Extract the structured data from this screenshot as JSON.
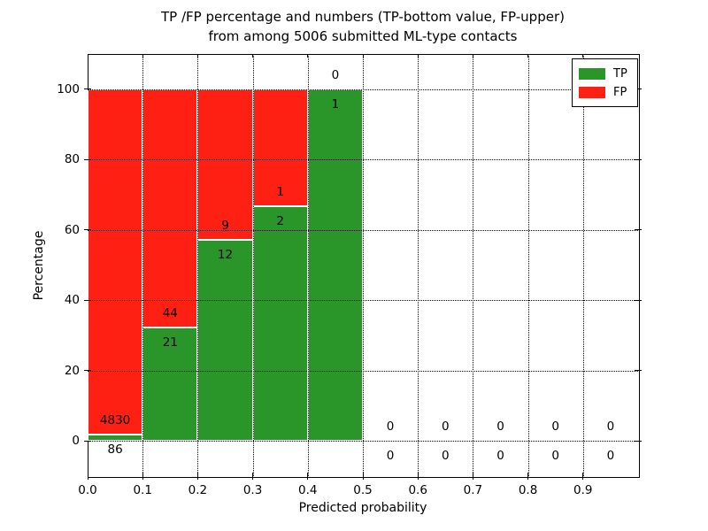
{
  "chart_data": {
    "type": "bar",
    "stacked": true,
    "title_lines": [
      "TP /FP percentage and numbers (TP-bottom value, FP-upper)",
      "from among 5006 submitted ML-type contacts"
    ],
    "xlabel": "Predicted probability",
    "ylabel": "Percentage",
    "xlim": [
      0.0,
      1.0
    ],
    "ylim": [
      -10,
      110
    ],
    "xticks": [
      0.0,
      0.1,
      0.2,
      0.3,
      0.4,
      0.5,
      0.6,
      0.7,
      0.8,
      0.9
    ],
    "xtick_labels": [
      "0.0",
      "0.1",
      "0.2",
      "0.3",
      "0.4",
      "0.5",
      "0.6",
      "0.7",
      "0.8",
      "0.9"
    ],
    "yticks": [
      0,
      20,
      40,
      60,
      80,
      100
    ],
    "ytick_labels": [
      "0",
      "20",
      "40",
      "60",
      "80",
      "100"
    ],
    "grid": {
      "visible": true,
      "style": "dotted",
      "color": "#000000",
      "drawn_over_bars": true
    },
    "total_contacts": 5006,
    "bins": [
      {
        "range": [
          0.0,
          0.1
        ],
        "tp": 86,
        "fp": 4830,
        "tp_pct": 1.75
      },
      {
        "range": [
          0.1,
          0.2
        ],
        "tp": 21,
        "fp": 44,
        "tp_pct": 32.31
      },
      {
        "range": [
          0.2,
          0.3
        ],
        "tp": 12,
        "fp": 9,
        "tp_pct": 57.14
      },
      {
        "range": [
          0.3,
          0.4
        ],
        "tp": 2,
        "fp": 1,
        "tp_pct": 66.67
      },
      {
        "range": [
          0.4,
          0.5
        ],
        "tp": 1,
        "fp": 0,
        "tp_pct": 100.0
      },
      {
        "range": [
          0.5,
          0.6
        ],
        "tp": 0,
        "fp": 0,
        "tp_pct": 0
      },
      {
        "range": [
          0.6,
          0.7
        ],
        "tp": 0,
        "fp": 0,
        "tp_pct": 0
      },
      {
        "range": [
          0.7,
          0.8
        ],
        "tp": 0,
        "fp": 0,
        "tp_pct": 0
      },
      {
        "range": [
          0.8,
          0.9
        ],
        "tp": 0,
        "fp": 0,
        "tp_pct": 0
      },
      {
        "range": [
          0.9,
          1.0
        ],
        "tp": 0,
        "fp": 0,
        "tp_pct": 0
      }
    ],
    "legend": {
      "position": "upper right",
      "entries": [
        {
          "label": "TP",
          "color": "#2a962a"
        },
        {
          "label": "FP",
          "color": "#ff2014"
        }
      ]
    },
    "colors": {
      "tp_bar": "#2a962a",
      "fp_bar": "#ff2014",
      "bar_edge": "#ffffff",
      "text": "#000000",
      "background": "#ffffff"
    }
  }
}
